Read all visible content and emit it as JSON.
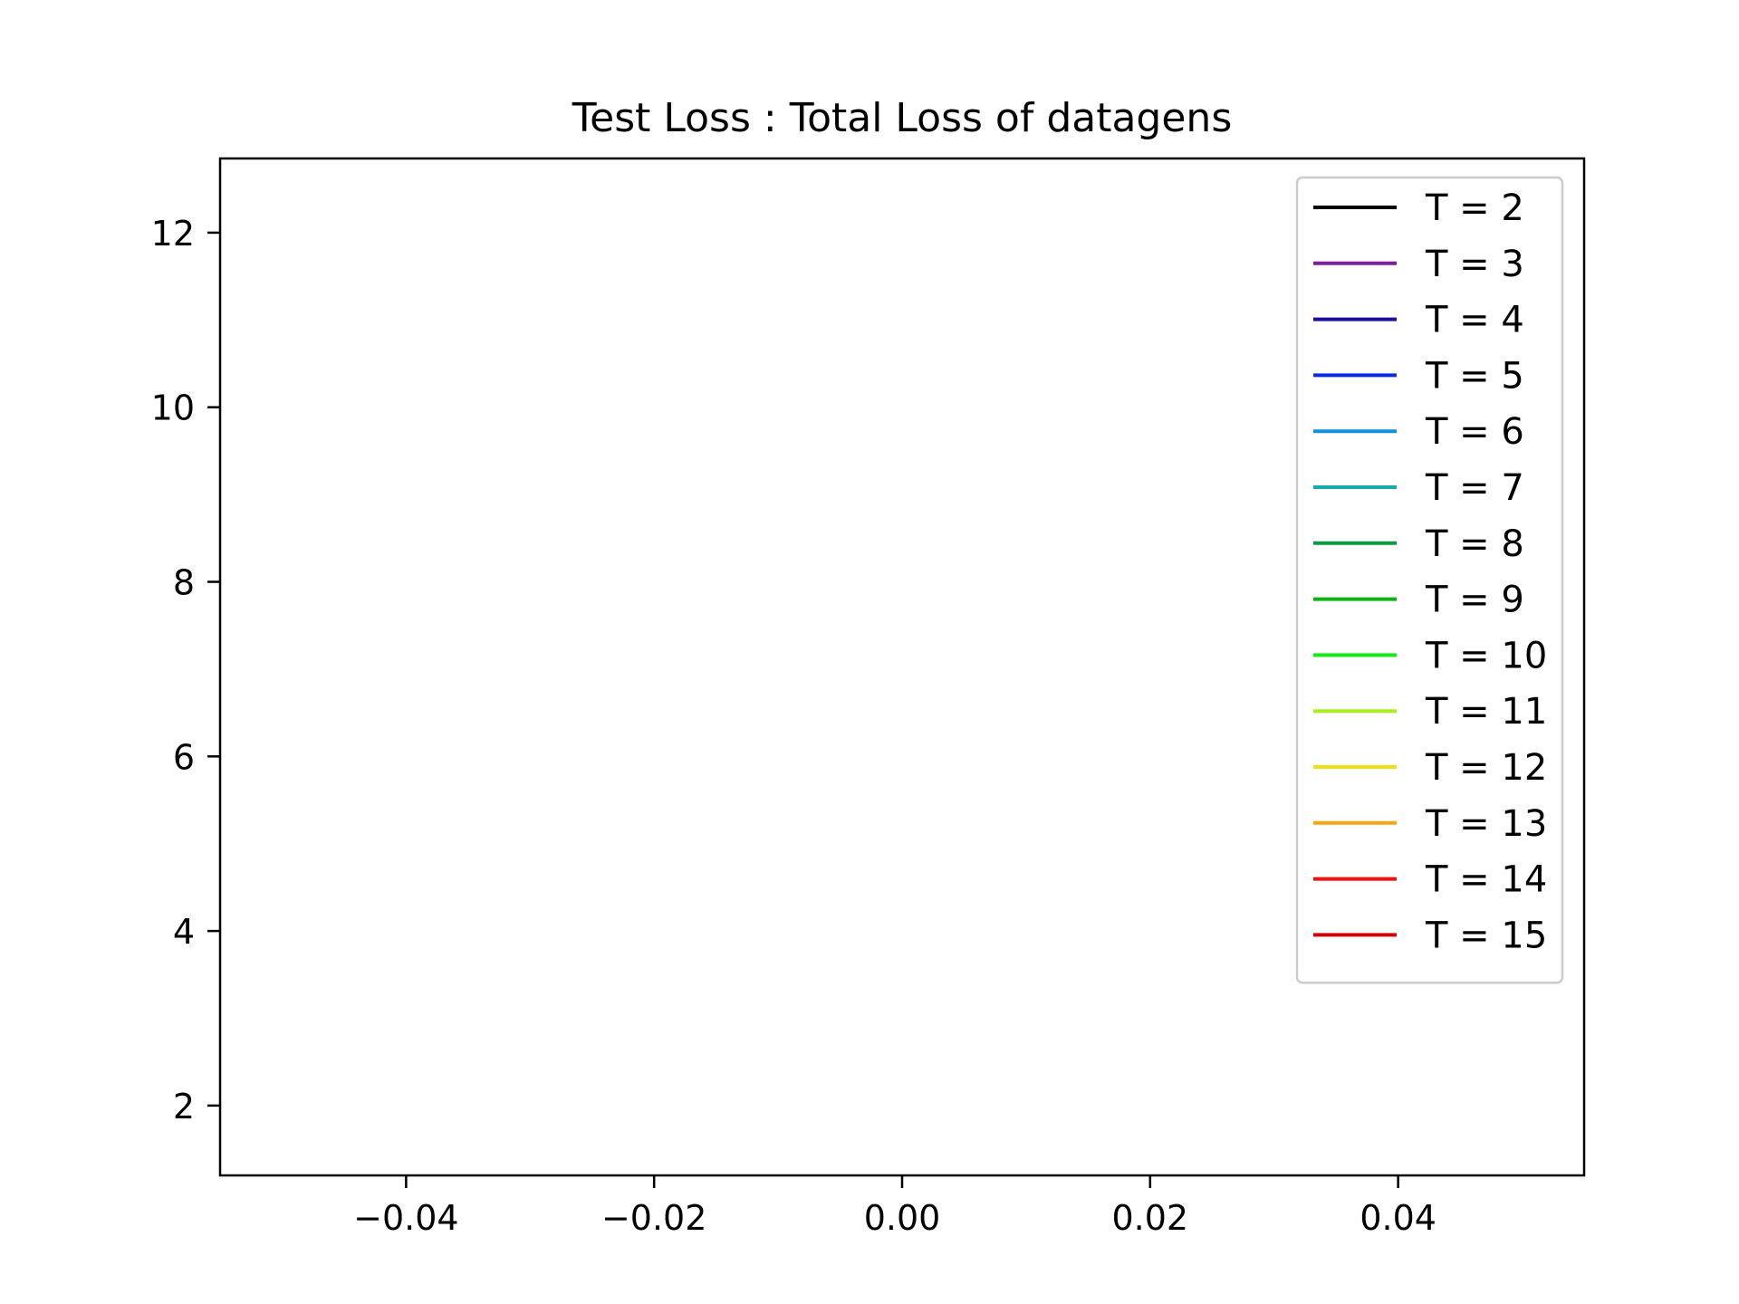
{
  "chart_data": {
    "type": "line",
    "title": "Test Loss : Total Loss of datagens",
    "xlabel": "",
    "ylabel": "",
    "xlim": [
      -0.055,
      0.055
    ],
    "ylim": [
      1.2,
      12.85
    ],
    "xticks": [
      -0.04,
      -0.02,
      0.0,
      0.02,
      0.04
    ],
    "xtick_labels": [
      "−0.04",
      "−0.02",
      "0.00",
      "0.02",
      "0.04"
    ],
    "yticks": [
      2,
      4,
      6,
      8,
      10,
      12
    ],
    "ytick_labels": [
      "2",
      "4",
      "6",
      "8",
      "10",
      "12"
    ],
    "grid": false,
    "legend_position": "top-right",
    "series": [
      {
        "name": "T = 2",
        "color": "#000000",
        "x": [],
        "y": []
      },
      {
        "name": "T = 3",
        "color": "#7f1f9a",
        "x": [],
        "y": []
      },
      {
        "name": "T = 4",
        "color": "#1a0f9a",
        "x": [],
        "y": []
      },
      {
        "name": "T = 5",
        "color": "#0a2ce0",
        "x": [],
        "y": []
      },
      {
        "name": "T = 6",
        "color": "#1290e0",
        "x": [],
        "y": []
      },
      {
        "name": "T = 7",
        "color": "#17aaaa",
        "x": [],
        "y": []
      },
      {
        "name": "T = 8",
        "color": "#0e9a45",
        "x": [],
        "y": []
      },
      {
        "name": "T = 9",
        "color": "#0fb212",
        "x": [],
        "y": []
      },
      {
        "name": "T = 10",
        "color": "#12ec12",
        "x": [],
        "y": []
      },
      {
        "name": "T = 11",
        "color": "#a8f21c",
        "x": [],
        "y": []
      },
      {
        "name": "T = 12",
        "color": "#f0e016",
        "x": [],
        "y": []
      },
      {
        "name": "T = 13",
        "color": "#fca414",
        "x": [],
        "y": []
      },
      {
        "name": "T = 14",
        "color": "#f01010",
        "x": [],
        "y": []
      },
      {
        "name": "T = 15",
        "color": "#d00000",
        "x": [],
        "y": []
      }
    ]
  }
}
